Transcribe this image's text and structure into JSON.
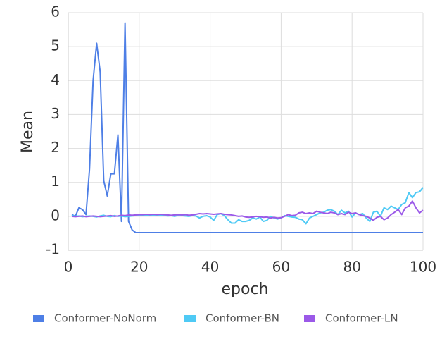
{
  "chart_data": {
    "type": "line",
    "x_label": "epoch",
    "y_label": "Mean",
    "x": [
      1,
      2,
      3,
      4,
      5,
      6,
      7,
      8,
      9,
      10,
      11,
      12,
      13,
      14,
      15,
      16,
      17,
      18,
      19,
      20,
      21,
      22,
      23,
      24,
      25,
      26,
      27,
      28,
      29,
      30,
      31,
      32,
      33,
      34,
      35,
      36,
      37,
      38,
      39,
      40,
      41,
      42,
      43,
      44,
      45,
      46,
      47,
      48,
      49,
      50,
      51,
      52,
      53,
      54,
      55,
      56,
      57,
      58,
      59,
      60,
      61,
      62,
      63,
      64,
      65,
      66,
      67,
      68,
      69,
      70,
      71,
      72,
      73,
      74,
      75,
      76,
      77,
      78,
      79,
      80,
      81,
      82,
      83,
      84,
      85,
      86,
      87,
      88,
      89,
      90,
      91,
      92,
      93,
      94,
      95,
      96,
      97,
      98,
      99,
      100
    ],
    "xlim": [
      0,
      100
    ],
    "xticks": [
      0,
      20,
      40,
      60,
      80,
      100
    ],
    "ylim": [
      -1,
      6
    ],
    "yticks": [
      -1,
      0,
      1,
      2,
      3,
      4,
      5,
      6
    ],
    "grid": true,
    "legend": "bottom",
    "series": [
      {
        "name": "Conformer-NoNorm",
        "color": "#4e7fe6",
        "values": [
          0.05,
          0.0,
          0.25,
          0.2,
          0.05,
          1.4,
          4.0,
          5.1,
          4.25,
          1.05,
          0.6,
          1.25,
          1.25,
          2.4,
          -0.15,
          5.7,
          -0.15,
          -0.4,
          -0.48,
          -0.48,
          -0.48,
          -0.48,
          -0.48,
          -0.48,
          -0.48,
          -0.48,
          -0.48,
          -0.48,
          -0.48,
          -0.48,
          -0.48,
          -0.48,
          -0.48,
          -0.48,
          -0.48,
          -0.48,
          -0.48,
          -0.48,
          -0.48,
          -0.48,
          -0.48,
          -0.48,
          -0.48,
          -0.48,
          -0.48,
          -0.48,
          -0.48,
          -0.48,
          -0.48,
          -0.48,
          -0.48,
          -0.48,
          -0.48,
          -0.48,
          -0.48,
          -0.48,
          -0.48,
          -0.48,
          -0.48,
          -0.48,
          -0.48,
          -0.48,
          -0.48,
          -0.48,
          -0.48,
          -0.48,
          -0.48,
          -0.48,
          -0.48,
          -0.48,
          -0.48,
          -0.48,
          -0.48,
          -0.48,
          -0.48,
          -0.48,
          -0.48,
          -0.48,
          -0.48,
          -0.48,
          -0.48,
          -0.48,
          -0.48,
          -0.48,
          -0.48,
          -0.48,
          -0.48,
          -0.48,
          -0.48,
          -0.48,
          -0.48,
          -0.48,
          -0.48,
          -0.48,
          -0.48,
          -0.48,
          -0.48,
          -0.48,
          -0.48,
          -0.48
        ]
      },
      {
        "name": "Conformer-BN",
        "color": "#4fcaf5",
        "values": [
          0.02,
          0.0,
          0.01,
          -0.01,
          0.0,
          0.01,
          0.0,
          -0.02,
          0.01,
          0.03,
          0.0,
          -0.01,
          0.02,
          0.0,
          0.01,
          -0.01,
          0.0,
          0.01,
          0.02,
          0.02,
          0.03,
          0.02,
          0.04,
          0.03,
          0.02,
          0.04,
          0.03,
          0.01,
          0.02,
          0.0,
          0.03,
          0.02,
          0.01,
          0.0,
          0.02,
          0.01,
          -0.05,
          0.0,
          0.02,
          -0.02,
          -0.12,
          0.05,
          0.08,
          0.02,
          -0.1,
          -0.2,
          -0.2,
          -0.1,
          -0.15,
          -0.15,
          -0.12,
          -0.05,
          -0.08,
          -0.02,
          -0.15,
          -0.12,
          0.0,
          -0.05,
          -0.08,
          -0.05,
          0.02,
          0.0,
          -0.02,
          -0.03,
          -0.08,
          -0.1,
          -0.22,
          -0.05,
          0.0,
          0.05,
          0.1,
          0.12,
          0.18,
          0.2,
          0.15,
          0.05,
          0.18,
          0.1,
          0.15,
          -0.02,
          0.1,
          0.05,
          0.08,
          -0.05,
          -0.15,
          0.12,
          0.15,
          0.0,
          0.25,
          0.2,
          0.3,
          0.25,
          0.2,
          0.35,
          0.4,
          0.7,
          0.55,
          0.7,
          0.72,
          0.85
        ]
      },
      {
        "name": "Conformer-LN",
        "color": "#9b59e8",
        "values": [
          0.0,
          -0.01,
          0.0,
          0.01,
          -0.01,
          0.0,
          0.01,
          0.0,
          -0.01,
          0.0,
          0.01,
          0.02,
          0.0,
          0.01,
          0.03,
          0.02,
          0.04,
          0.03,
          0.04,
          0.05,
          0.05,
          0.06,
          0.05,
          0.06,
          0.05,
          0.06,
          0.05,
          0.04,
          0.03,
          0.04,
          0.05,
          0.04,
          0.05,
          0.03,
          0.04,
          0.06,
          0.08,
          0.07,
          0.08,
          0.07,
          0.06,
          0.07,
          0.08,
          0.06,
          0.05,
          0.04,
          0.02,
          0.0,
          0.01,
          -0.02,
          -0.03,
          -0.02,
          0.0,
          -0.01,
          -0.03,
          -0.02,
          -0.05,
          -0.03,
          -0.05,
          -0.04,
          0.0,
          0.05,
          0.02,
          0.03,
          0.1,
          0.12,
          0.08,
          0.1,
          0.08,
          0.15,
          0.12,
          0.1,
          0.08,
          0.12,
          0.1,
          0.05,
          0.08,
          0.05,
          0.12,
          0.08,
          0.1,
          0.05,
          0.02,
          0.0,
          -0.05,
          -0.12,
          -0.03,
          0.0,
          -0.1,
          -0.05,
          0.05,
          0.12,
          0.2,
          0.05,
          0.25,
          0.3,
          0.45,
          0.25,
          0.1,
          0.18
        ]
      }
    ]
  }
}
